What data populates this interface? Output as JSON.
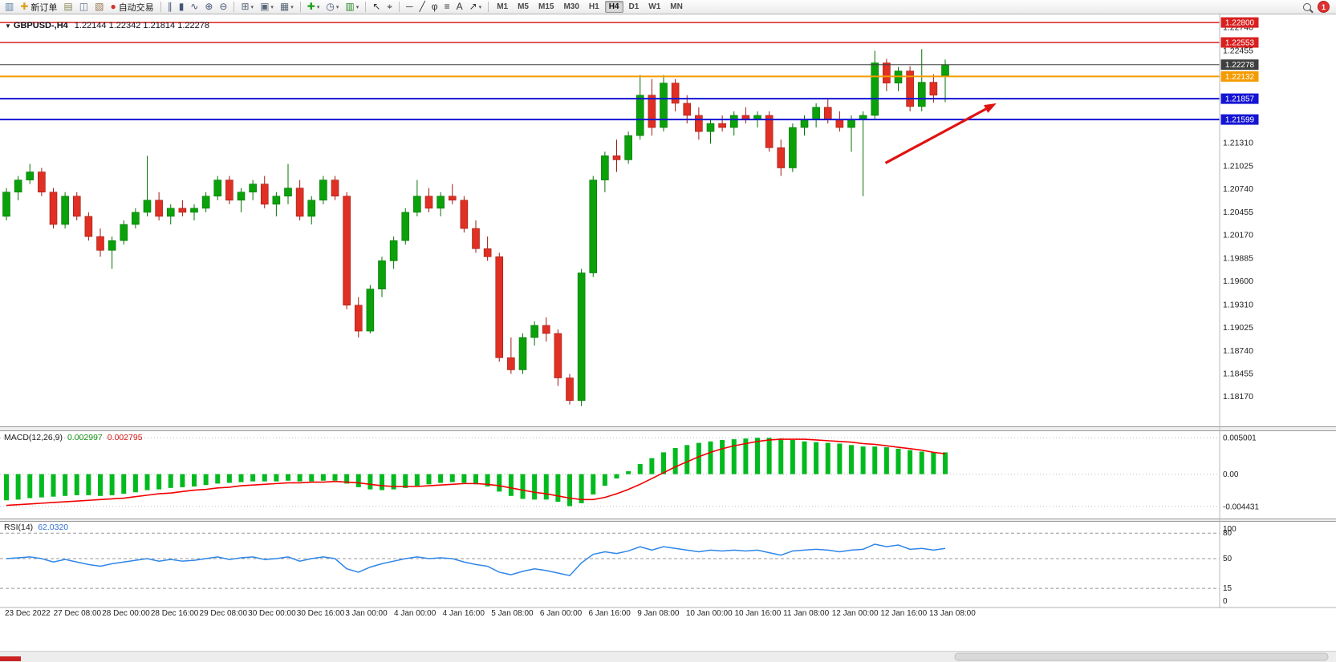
{
  "toolbar": {
    "dropdown_glyph": "▾",
    "collapse_glyph": "▼",
    "groups": [
      {
        "name": "trade-group",
        "items": [
          {
            "name": "chart-window-icon",
            "glyph": "▥",
            "color": "#5b7fa6"
          },
          {
            "name": "new-order-button",
            "label": "新订单",
            "glyph": "✚",
            "color": "#d8a01d"
          },
          {
            "name": "market-watch-icon",
            "glyph": "▤",
            "color": "#8a8a5a"
          },
          {
            "name": "data-window-icon",
            "glyph": "◫",
            "color": "#66778a"
          },
          {
            "name": "navigator-icon",
            "glyph": "▧",
            "color": "#997755"
          },
          {
            "name": "auto-trading-button",
            "label": "自动交易",
            "glyph": "●",
            "color": "#d03030"
          }
        ]
      },
      {
        "name": "chart-type-group",
        "items": [
          {
            "name": "bar-chart-icon",
            "glyph": "∥",
            "color": "#445577"
          },
          {
            "name": "candlestick-chart-icon",
            "glyph": "▮",
            "color": "#445577"
          },
          {
            "name": "line-chart-icon",
            "glyph": "∿",
            "color": "#445577"
          },
          {
            "name": "zoom-in-icon",
            "glyph": "⊕",
            "color": "#445577"
          },
          {
            "name": "zoom-out-icon",
            "glyph": "⊖",
            "color": "#445577"
          }
        ]
      },
      {
        "name": "window-group",
        "items": [
          {
            "name": "tile-windows-icon",
            "glyph": "⊞",
            "color": "#556677",
            "dropdown": true
          },
          {
            "name": "new-chart-icon",
            "glyph": "▣",
            "color": "#556677",
            "dropdown": true
          },
          {
            "name": "profiles-icon",
            "glyph": "▦",
            "color": "#556677",
            "dropdown": true
          }
        ]
      },
      {
        "name": "indicator-group",
        "items": [
          {
            "name": "indicators-icon",
            "glyph": "✚",
            "color": "#18a018",
            "dropdown": true
          },
          {
            "name": "periods-icon",
            "glyph": "◷",
            "color": "#445577",
            "dropdown": true
          },
          {
            "name": "templates-icon",
            "glyph": "▥",
            "color": "#2a8a2a",
            "dropdown": true
          }
        ]
      },
      {
        "name": "cursor-group",
        "items": [
          {
            "name": "cursor-icon",
            "glyph": "↖",
            "color": "#333333"
          },
          {
            "name": "crosshair-icon",
            "glyph": "⌖",
            "color": "#333333"
          }
        ]
      },
      {
        "name": "objects-group",
        "items": [
          {
            "name": "horizontal-line-icon",
            "glyph": "─",
            "color": "#333333"
          },
          {
            "name": "trendline-icon",
            "glyph": "╱",
            "color": "#333333"
          },
          {
            "name": "fibonacci-icon",
            "glyph": "φ",
            "color": "#333333"
          },
          {
            "name": "channel-icon",
            "glyph": "≡",
            "color": "#333333"
          },
          {
            "name": "text-tool-icon",
            "glyph": "A",
            "color": "#333333"
          },
          {
            "name": "arrow-tool-icon",
            "glyph": "↗",
            "color": "#333333",
            "dropdown": true
          }
        ]
      }
    ],
    "timeframes": [
      "M1",
      "M5",
      "M15",
      "M30",
      "H1",
      "H4",
      "D1",
      "W1",
      "MN"
    ],
    "active_timeframe": "H4",
    "notification_count": "1"
  },
  "chart": {
    "symbol_title": "GBPUSD-,H4",
    "ohlc_text": "1.22144 1.22342 1.21814 1.22278"
  },
  "indicators": {
    "macd": {
      "label": "MACD(12,26,9)",
      "value_main": "0.002997",
      "value_signal": "0.002795",
      "axis_labels": [
        "0.005001",
        "0.00",
        "-0.004431"
      ],
      "axis_values": [
        0.005001,
        0,
        -0.004431
      ]
    },
    "rsi": {
      "label": "RSI(14)",
      "value": "62.0320",
      "axis_labels": [
        "100",
        "80",
        "50",
        "15",
        "0"
      ],
      "axis_values": [
        100,
        80,
        50,
        15,
        0
      ],
      "level_lines": [
        80,
        50,
        15
      ]
    }
  },
  "price_scale": {
    "gridline_labels": [
      "1.22740",
      "1.22455",
      "1.21310",
      "1.21025",
      "1.20740",
      "1.20455",
      "1.20170",
      "1.19885",
      "1.19600",
      "1.19310",
      "1.19025",
      "1.18740",
      "1.18455",
      "1.18170"
    ]
  },
  "levels": [
    {
      "name": "resistance-line-upper",
      "price": 1.228,
      "label": "1.22800",
      "color": "#d92020",
      "width": 1.5
    },
    {
      "name": "resistance-line-lower",
      "price": 1.22553,
      "label": "1.22553",
      "color": "#d92020",
      "width": 1.5
    },
    {
      "name": "current-price-line",
      "price": 1.22278,
      "label": "1.22278",
      "color": "#3f3f3f",
      "width": 1
    },
    {
      "name": "orange-level-line",
      "price": 1.22132,
      "label": "1.22132",
      "color": "#f59b00",
      "width": 2
    },
    {
      "name": "support-line-upper",
      "price": 1.21857,
      "label": "1.21857",
      "color": "#1414d4",
      "width": 2
    },
    {
      "name": "support-line-lower",
      "price": 1.21599,
      "label": "1.21599",
      "color": "#1414d4",
      "width": 2
    }
  ],
  "timeline": [
    "23 Dec 2022",
    "27 Dec 08:00",
    "28 Dec 00:00",
    "28 Dec 16:00",
    "29 Dec 08:00",
    "30 Dec 00:00",
    "30 Dec 16:00",
    "3 Jan 00:00",
    "4 Jan 00:00",
    "4 Jan 16:00",
    "5 Jan 08:00",
    "6 Jan 00:00",
    "6 Jan 16:00",
    "9 Jan 08:00",
    "10 Jan 00:00",
    "10 Jan 16:00",
    "11 Jan 08:00",
    "12 Jan 00:00",
    "12 Jan 16:00",
    "13 Jan 08:00"
  ],
  "chart_data": {
    "type": "candlestick",
    "symbol": "GBPUSD",
    "timeframe": "H4",
    "price_axis_range": [
      1.178,
      1.229
    ],
    "up_color": "#0aa10a",
    "up_stroke": "#067306",
    "down_color": "#df3023",
    "down_stroke": "#9e1a14",
    "candles_ohlc": [
      [
        1.204,
        1.2075,
        1.2035,
        1.207
      ],
      [
        1.207,
        1.209,
        1.206,
        1.2085
      ],
      [
        1.2085,
        1.2105,
        1.208,
        1.2095
      ],
      [
        1.2095,
        1.21,
        1.2065,
        1.207
      ],
      [
        1.207,
        1.2075,
        1.2025,
        1.203
      ],
      [
        1.203,
        1.207,
        1.2025,
        1.2065
      ],
      [
        1.2065,
        1.207,
        1.2035,
        1.204
      ],
      [
        1.204,
        1.2045,
        1.201,
        1.2015
      ],
      [
        1.2015,
        1.2025,
        1.199,
        1.1998
      ],
      [
        1.1998,
        1.2015,
        1.1975,
        1.201
      ],
      [
        1.201,
        1.2035,
        1.2005,
        1.203
      ],
      [
        1.203,
        1.205,
        1.2025,
        1.2045
      ],
      [
        1.2045,
        1.2115,
        1.204,
        1.206
      ],
      [
        1.206,
        1.207,
        1.2035,
        1.204
      ],
      [
        1.204,
        1.2055,
        1.203,
        1.205
      ],
      [
        1.205,
        1.206,
        1.204,
        1.2045
      ],
      [
        1.2045,
        1.2055,
        1.2035,
        1.205
      ],
      [
        1.205,
        1.207,
        1.2045,
        1.2065
      ],
      [
        1.2065,
        1.209,
        1.206,
        1.2085
      ],
      [
        1.2085,
        1.209,
        1.2055,
        1.206
      ],
      [
        1.206,
        1.2075,
        1.2045,
        1.207
      ],
      [
        1.207,
        1.2085,
        1.206,
        1.208
      ],
      [
        1.208,
        1.209,
        1.205,
        1.2055
      ],
      [
        1.2055,
        1.207,
        1.204,
        1.2065
      ],
      [
        1.2065,
        1.2105,
        1.2055,
        1.2075
      ],
      [
        1.2075,
        1.2085,
        1.2035,
        1.204
      ],
      [
        1.204,
        1.2065,
        1.203,
        1.206
      ],
      [
        1.206,
        1.209,
        1.2055,
        1.2085
      ],
      [
        1.2085,
        1.209,
        1.206,
        1.2065
      ],
      [
        1.2065,
        1.207,
        1.1925,
        1.193
      ],
      [
        1.193,
        1.194,
        1.189,
        1.1898
      ],
      [
        1.1898,
        1.1955,
        1.1895,
        1.195
      ],
      [
        1.195,
        1.199,
        1.194,
        1.1985
      ],
      [
        1.1985,
        1.2015,
        1.1975,
        1.201
      ],
      [
        1.201,
        1.205,
        1.2005,
        1.2045
      ],
      [
        1.2045,
        1.2085,
        1.204,
        1.2065
      ],
      [
        1.2065,
        1.2075,
        1.2045,
        1.205
      ],
      [
        1.205,
        1.207,
        1.204,
        1.2065
      ],
      [
        1.2065,
        1.208,
        1.2055,
        1.206
      ],
      [
        1.206,
        1.2065,
        1.202,
        1.2025
      ],
      [
        1.2025,
        1.2035,
        1.1995,
        1.2
      ],
      [
        1.2,
        1.2015,
        1.1985,
        1.199
      ],
      [
        1.199,
        1.1995,
        1.186,
        1.1865
      ],
      [
        1.1865,
        1.189,
        1.1845,
        1.185
      ],
      [
        1.185,
        1.1895,
        1.1845,
        1.189
      ],
      [
        1.189,
        1.191,
        1.188,
        1.1905
      ],
      [
        1.1905,
        1.1915,
        1.1885,
        1.1895
      ],
      [
        1.1895,
        1.19,
        1.183,
        1.184
      ],
      [
        1.184,
        1.1845,
        1.1807,
        1.1812
      ],
      [
        1.1812,
        1.1975,
        1.1805,
        1.197
      ],
      [
        1.197,
        1.209,
        1.1965,
        1.2085
      ],
      [
        1.2085,
        1.212,
        1.207,
        1.2115
      ],
      [
        1.2115,
        1.2135,
        1.2095,
        1.211
      ],
      [
        1.211,
        1.2145,
        1.2105,
        1.214
      ],
      [
        1.214,
        1.2215,
        1.2135,
        1.219
      ],
      [
        1.219,
        1.221,
        1.214,
        1.215
      ],
      [
        1.215,
        1.2215,
        1.2145,
        1.2205
      ],
      [
        1.2205,
        1.221,
        1.217,
        1.218
      ],
      [
        1.218,
        1.219,
        1.2155,
        1.2165
      ],
      [
        1.2165,
        1.2175,
        1.2135,
        1.2145
      ],
      [
        1.2145,
        1.216,
        1.213,
        1.2155
      ],
      [
        1.2155,
        1.2165,
        1.2145,
        1.215
      ],
      [
        1.215,
        1.217,
        1.214,
        1.2165
      ],
      [
        1.2165,
        1.2175,
        1.2155,
        1.216
      ],
      [
        1.216,
        1.217,
        1.215,
        1.2165
      ],
      [
        1.2165,
        1.217,
        1.212,
        1.2125
      ],
      [
        1.2125,
        1.2135,
        1.209,
        1.21
      ],
      [
        1.21,
        1.2155,
        1.2095,
        1.215
      ],
      [
        1.215,
        1.2165,
        1.214,
        1.216
      ],
      [
        1.216,
        1.218,
        1.215,
        1.2175
      ],
      [
        1.2175,
        1.2185,
        1.2155,
        1.216
      ],
      [
        1.216,
        1.217,
        1.2145,
        1.215
      ],
      [
        1.215,
        1.2165,
        1.212,
        1.216
      ],
      [
        1.216,
        1.217,
        1.2065,
        1.2165
      ],
      [
        1.2165,
        1.2245,
        1.216,
        1.223
      ],
      [
        1.223,
        1.2235,
        1.2195,
        1.2205
      ],
      [
        1.2205,
        1.2225,
        1.2195,
        1.222
      ],
      [
        1.222,
        1.2226,
        1.217,
        1.2176
      ],
      [
        1.2176,
        1.2247,
        1.217,
        1.2206
      ],
      [
        1.2206,
        1.2216,
        1.2181,
        1.219
      ],
      [
        1.22144,
        1.22342,
        1.21814,
        1.22278
      ]
    ],
    "macd": {
      "range": [
        -0.006,
        0.0058
      ],
      "histogram_color": "#00ba1e",
      "signal_color": "#f20000",
      "histogram": [
        -0.0036,
        -0.0035,
        -0.0033,
        -0.0032,
        -0.0031,
        -0.003,
        -0.0029,
        -0.0029,
        -0.003,
        -0.0029,
        -0.0027,
        -0.0025,
        -0.0022,
        -0.0021,
        -0.0019,
        -0.0018,
        -0.0017,
        -0.0015,
        -0.0013,
        -0.0012,
        -0.0011,
        -0.001,
        -0.001,
        -0.001,
        -0.0009,
        -0.001,
        -0.001,
        -0.0009,
        -0.0009,
        -0.0013,
        -0.0018,
        -0.0021,
        -0.0022,
        -0.0021,
        -0.0019,
        -0.0016,
        -0.0014,
        -0.0012,
        -0.0011,
        -0.0012,
        -0.0014,
        -0.0017,
        -0.0024,
        -0.003,
        -0.0034,
        -0.0035,
        -0.0035,
        -0.0038,
        -0.0044,
        -0.004,
        -0.0028,
        -0.0016,
        -0.0006,
        0.0004,
        0.0014,
        0.0022,
        0.003,
        0.0036,
        0.004,
        0.0043,
        0.0045,
        0.0047,
        0.0048,
        0.0049,
        0.005,
        0.005,
        0.0049,
        0.0047,
        0.0045,
        0.0044,
        0.0043,
        0.0042,
        0.004,
        0.0038,
        0.0038,
        0.0037,
        0.0035,
        0.0033,
        0.0031,
        0.003,
        0.003
      ],
      "signal": [
        -0.0043,
        -0.0042,
        -0.0041,
        -0.004,
        -0.0039,
        -0.0038,
        -0.0037,
        -0.0036,
        -0.0035,
        -0.0034,
        -0.0033,
        -0.0031,
        -0.0029,
        -0.0027,
        -0.0026,
        -0.0024,
        -0.0022,
        -0.0021,
        -0.0019,
        -0.0018,
        -0.0016,
        -0.0015,
        -0.0014,
        -0.0013,
        -0.0012,
        -0.0012,
        -0.0011,
        -0.0011,
        -0.001,
        -0.0011,
        -0.0012,
        -0.0014,
        -0.0016,
        -0.0017,
        -0.0017,
        -0.0017,
        -0.0016,
        -0.0015,
        -0.0014,
        -0.0013,
        -0.0013,
        -0.0014,
        -0.0016,
        -0.0019,
        -0.0022,
        -0.0025,
        -0.0027,
        -0.003,
        -0.0033,
        -0.0035,
        -0.0035,
        -0.0032,
        -0.0027,
        -0.0021,
        -0.0014,
        -0.0006,
        0.0002,
        0.001,
        0.0017,
        0.0024,
        0.003,
        0.0035,
        0.0039,
        0.0042,
        0.0045,
        0.0047,
        0.0048,
        0.0048,
        0.0048,
        0.0047,
        0.0046,
        0.0045,
        0.0044,
        0.0042,
        0.0041,
        0.0039,
        0.0037,
        0.0035,
        0.0033,
        0.003,
        0.0028
      ]
    },
    "rsi": {
      "range": [
        0,
        100
      ],
      "line_color": "#2e86e8",
      "values": [
        50,
        51,
        52,
        50,
        46,
        49,
        46,
        43,
        41,
        44,
        46,
        48,
        50,
        47,
        49,
        47,
        48,
        50,
        52,
        49,
        51,
        52,
        49,
        50,
        52,
        47,
        50,
        52,
        50,
        38,
        34,
        40,
        44,
        47,
        50,
        52,
        50,
        51,
        50,
        46,
        43,
        41,
        34,
        31,
        35,
        38,
        36,
        33,
        30,
        45,
        55,
        58,
        56,
        59,
        64,
        60,
        64,
        62,
        60,
        58,
        60,
        59,
        60,
        59,
        60,
        57,
        54,
        59,
        60,
        61,
        60,
        58,
        60,
        61,
        67,
        64,
        66,
        61,
        62,
        60,
        62.03
      ],
      "levels": [
        80,
        50,
        15
      ]
    },
    "arrow_annotation": {
      "x1_frac": 0.726,
      "y1_price": 1.2106,
      "x2_frac": 0.817,
      "y2_price": 1.218,
      "color": "#e01212"
    }
  },
  "bottom": {
    "accent_color": "#cc2222"
  }
}
